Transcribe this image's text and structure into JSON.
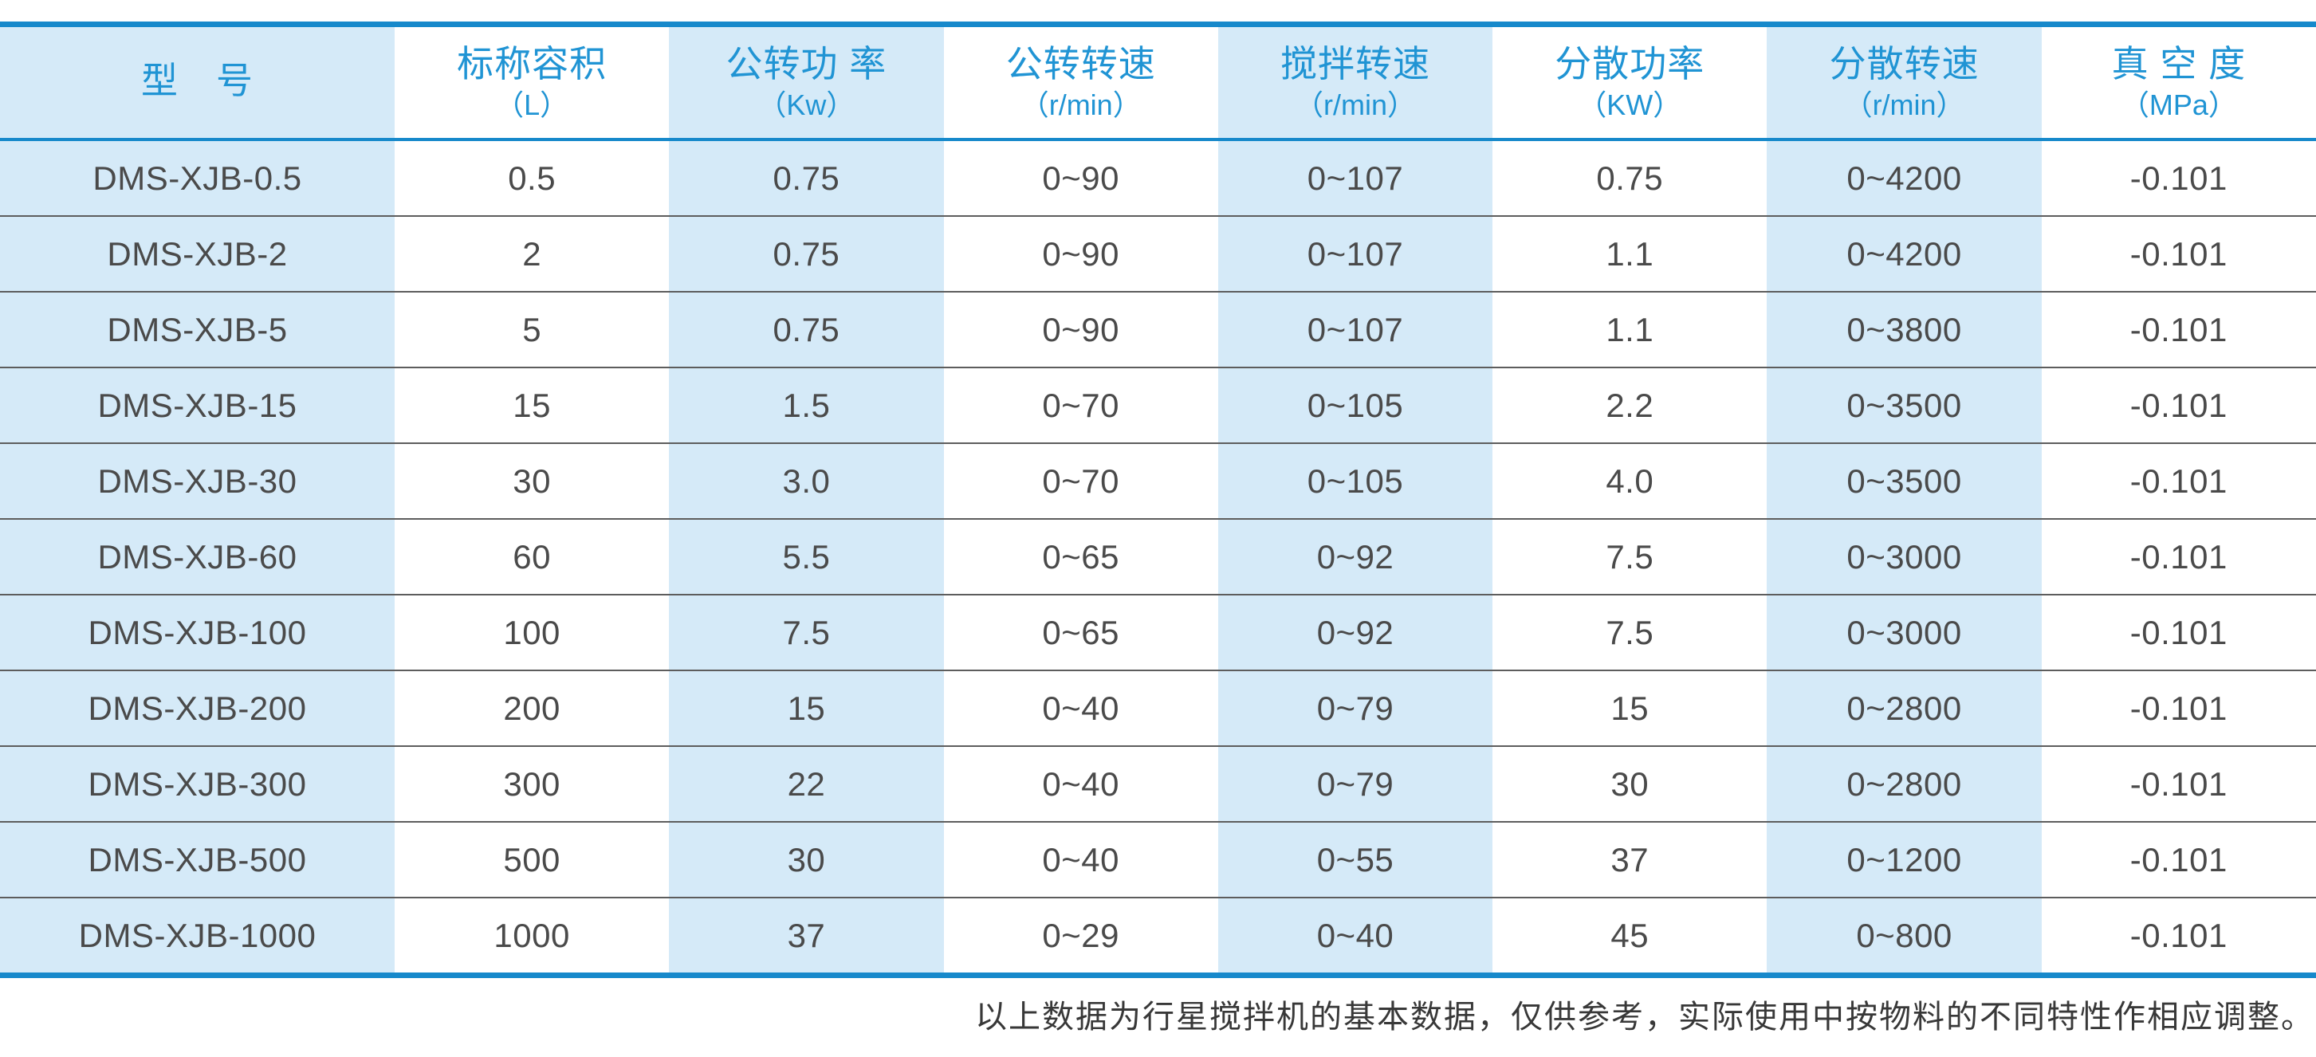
{
  "table": {
    "columns": [
      {
        "title": "型　号",
        "unit": ""
      },
      {
        "title": "标称容积",
        "unit": "（L）"
      },
      {
        "title": "公转功 率",
        "unit": "（Kw）"
      },
      {
        "title": "公转转速",
        "unit": "（r/min）"
      },
      {
        "title": "搅拌转速",
        "unit": "（r/min）"
      },
      {
        "title": "分散功率",
        "unit": "（KW）"
      },
      {
        "title": "分散转速",
        "unit": "（r/min）"
      },
      {
        "title": "真 空 度",
        "unit": "（MPa）"
      }
    ],
    "rows": [
      {
        "cells": [
          "DMS-XJB-0.5",
          "0.5",
          "0.75",
          "0~90",
          "0~107",
          "0.75",
          "0~4200",
          "-0.101"
        ]
      },
      {
        "cells": [
          "DMS-XJB-2",
          "2",
          "0.75",
          "0~90",
          "0~107",
          "1.1",
          "0~4200",
          "-0.101"
        ]
      },
      {
        "cells": [
          "DMS-XJB-5",
          "5",
          "0.75",
          "0~90",
          "0~107",
          "1.1",
          "0~3800",
          "-0.101"
        ]
      },
      {
        "cells": [
          "DMS-XJB-15",
          "15",
          "1.5",
          "0~70",
          "0~105",
          "2.2",
          "0~3500",
          "-0.101"
        ]
      },
      {
        "cells": [
          "DMS-XJB-30",
          "30",
          "3.0",
          "0~70",
          "0~105",
          "4.0",
          "0~3500",
          "-0.101"
        ]
      },
      {
        "cells": [
          "DMS-XJB-60",
          "60",
          "5.5",
          "0~65",
          "0~92",
          "7.5",
          "0~3000",
          "-0.101"
        ]
      },
      {
        "cells": [
          "DMS-XJB-100",
          "100",
          "7.5",
          "0~65",
          "0~92",
          "7.5",
          "0~3000",
          "-0.101"
        ]
      },
      {
        "cells": [
          "DMS-XJB-200",
          "200",
          "15",
          "0~40",
          "0~79",
          "15",
          "0~2800",
          "-0.101"
        ]
      },
      {
        "cells": [
          "DMS-XJB-300",
          "300",
          "22",
          "0~40",
          "0~79",
          "30",
          "0~2800",
          "-0.101"
        ]
      },
      {
        "cells": [
          "DMS-XJB-500",
          "500",
          "30",
          "0~40",
          "0~55",
          "37",
          "0~1200",
          "-0.101"
        ]
      },
      {
        "cells": [
          "DMS-XJB-1000",
          "1000",
          "37",
          "0~29",
          "0~40",
          "45",
          "0~800",
          "-0.101"
        ]
      }
    ]
  },
  "footer": {
    "note": "以上数据为行星搅拌机的基本数据，仅供参考，实际使用中按物料的不同特性作相应调整。"
  },
  "colors": {
    "accent_blue": "#1789cb",
    "header_text_blue": "#2094d4",
    "stripe_light_blue": "#d5eaf8",
    "row_separator_gray": "#5d5d5d",
    "data_text_gray": "#4a4a4a"
  }
}
